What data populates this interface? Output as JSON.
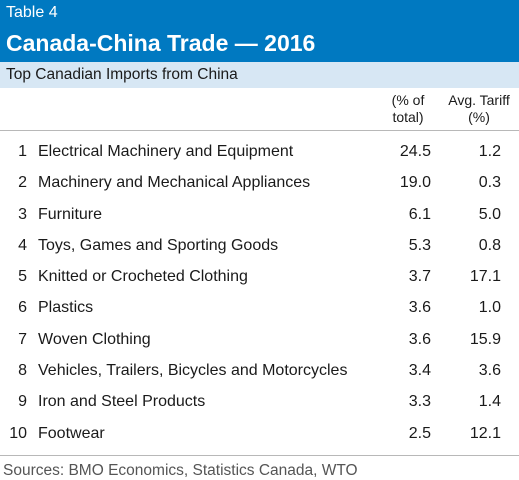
{
  "header": {
    "table_label": "Table 4",
    "title": "Canada-China Trade — 2016"
  },
  "subheading": "Top Canadian Imports from China",
  "columns": {
    "share": "(% of total)",
    "tariff": "Avg. Tariff (%)"
  },
  "rows": [
    {
      "rank": "1",
      "name": "Electrical Machinery and Equipment",
      "share": "24.5",
      "tariff": "1.2"
    },
    {
      "rank": "2",
      "name": "Machinery and Mechanical Appliances",
      "share": "19.0",
      "tariff": "0.3"
    },
    {
      "rank": "3",
      "name": "Furniture",
      "share": "6.1",
      "tariff": "5.0"
    },
    {
      "rank": "4",
      "name": "Toys, Games and Sporting Goods",
      "share": "5.3",
      "tariff": "0.8"
    },
    {
      "rank": "5",
      "name": "Knitted or Crocheted Clothing",
      "share": "3.7",
      "tariff": "17.1"
    },
    {
      "rank": "6",
      "name": "Plastics",
      "share": "3.6",
      "tariff": "1.0"
    },
    {
      "rank": "7",
      "name": "Woven Clothing",
      "share": "3.6",
      "tariff": "15.9"
    },
    {
      "rank": "8",
      "name": "Vehicles, Trailers, Bicycles and Motorcycles",
      "share": "3.4",
      "tariff": "3.6"
    },
    {
      "rank": "9",
      "name": "Iron and Steel Products",
      "share": "3.3",
      "tariff": "1.4"
    },
    {
      "rank": "10",
      "name": "Footwear",
      "share": "2.5",
      "tariff": "12.1"
    }
  ],
  "source": "Sources: BMO Economics, Statistics Canada, WTO",
  "colors": {
    "header_bg": "#0079c1",
    "subhead_bg": "#d7e7f4"
  }
}
